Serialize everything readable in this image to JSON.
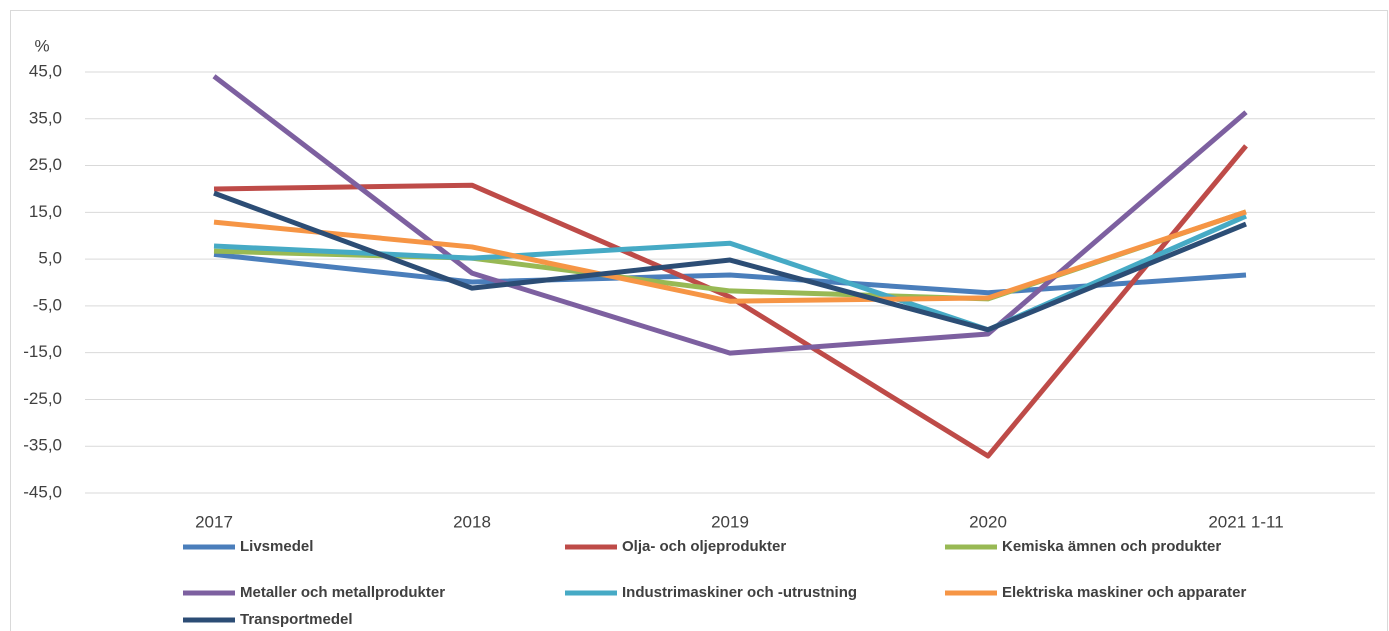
{
  "chart_data": {
    "type": "line",
    "y_unit_label": "%",
    "categories": [
      "2017",
      "2018",
      "2019",
      "2020",
      "2021 1-11"
    ],
    "series": [
      {
        "name": "Livsmedel",
        "color": "#4a7ebb",
        "values": [
          6.0,
          0.1,
          1.6,
          -2.2,
          1.6
        ]
      },
      {
        "name": "Olja- och oljeprodukter",
        "color": "#be4b48",
        "values": [
          20.0,
          20.8,
          -3.1,
          -37.1,
          29.2
        ]
      },
      {
        "name": "Kemiska ämnen och produkter",
        "color": "#98b954",
        "values": [
          6.7,
          5.2,
          -1.8,
          -3.5,
          15.1
        ]
      },
      {
        "name": "Metaller och metallprodukter",
        "color": "#7d60a0",
        "values": [
          44.1,
          2.0,
          -15.1,
          -11.0,
          36.4
        ]
      },
      {
        "name": "Industrimaskiner och -utrustning",
        "color": "#46aac5",
        "values": [
          7.8,
          5.2,
          8.4,
          -10.1,
          14.2
        ]
      },
      {
        "name": "Elektriska maskiner och apparater",
        "color": "#f69545",
        "values": [
          12.9,
          7.6,
          -4.0,
          -3.3,
          15.1
        ]
      },
      {
        "name": "Transportmedel",
        "color": "#2c4d75",
        "values": [
          19.1,
          -1.2,
          4.8,
          -10.1,
          12.5
        ]
      }
    ],
    "ylim": [
      -45,
      45
    ],
    "yticks": [
      {
        "value": -45,
        "label": "-45,0"
      },
      {
        "value": -35,
        "label": "-35,0"
      },
      {
        "value": -25,
        "label": "-25,0"
      },
      {
        "value": -15,
        "label": "-15,0"
      },
      {
        "value": -5,
        "label": "-5,0"
      },
      {
        "value": 5,
        "label": "5,0"
      },
      {
        "value": 15,
        "label": "15,0"
      },
      {
        "value": 25,
        "label": "25,0"
      },
      {
        "value": 35,
        "label": "35,0"
      },
      {
        "value": 45,
        "label": "45,0"
      }
    ],
    "grid": true,
    "legend": "bottom"
  }
}
